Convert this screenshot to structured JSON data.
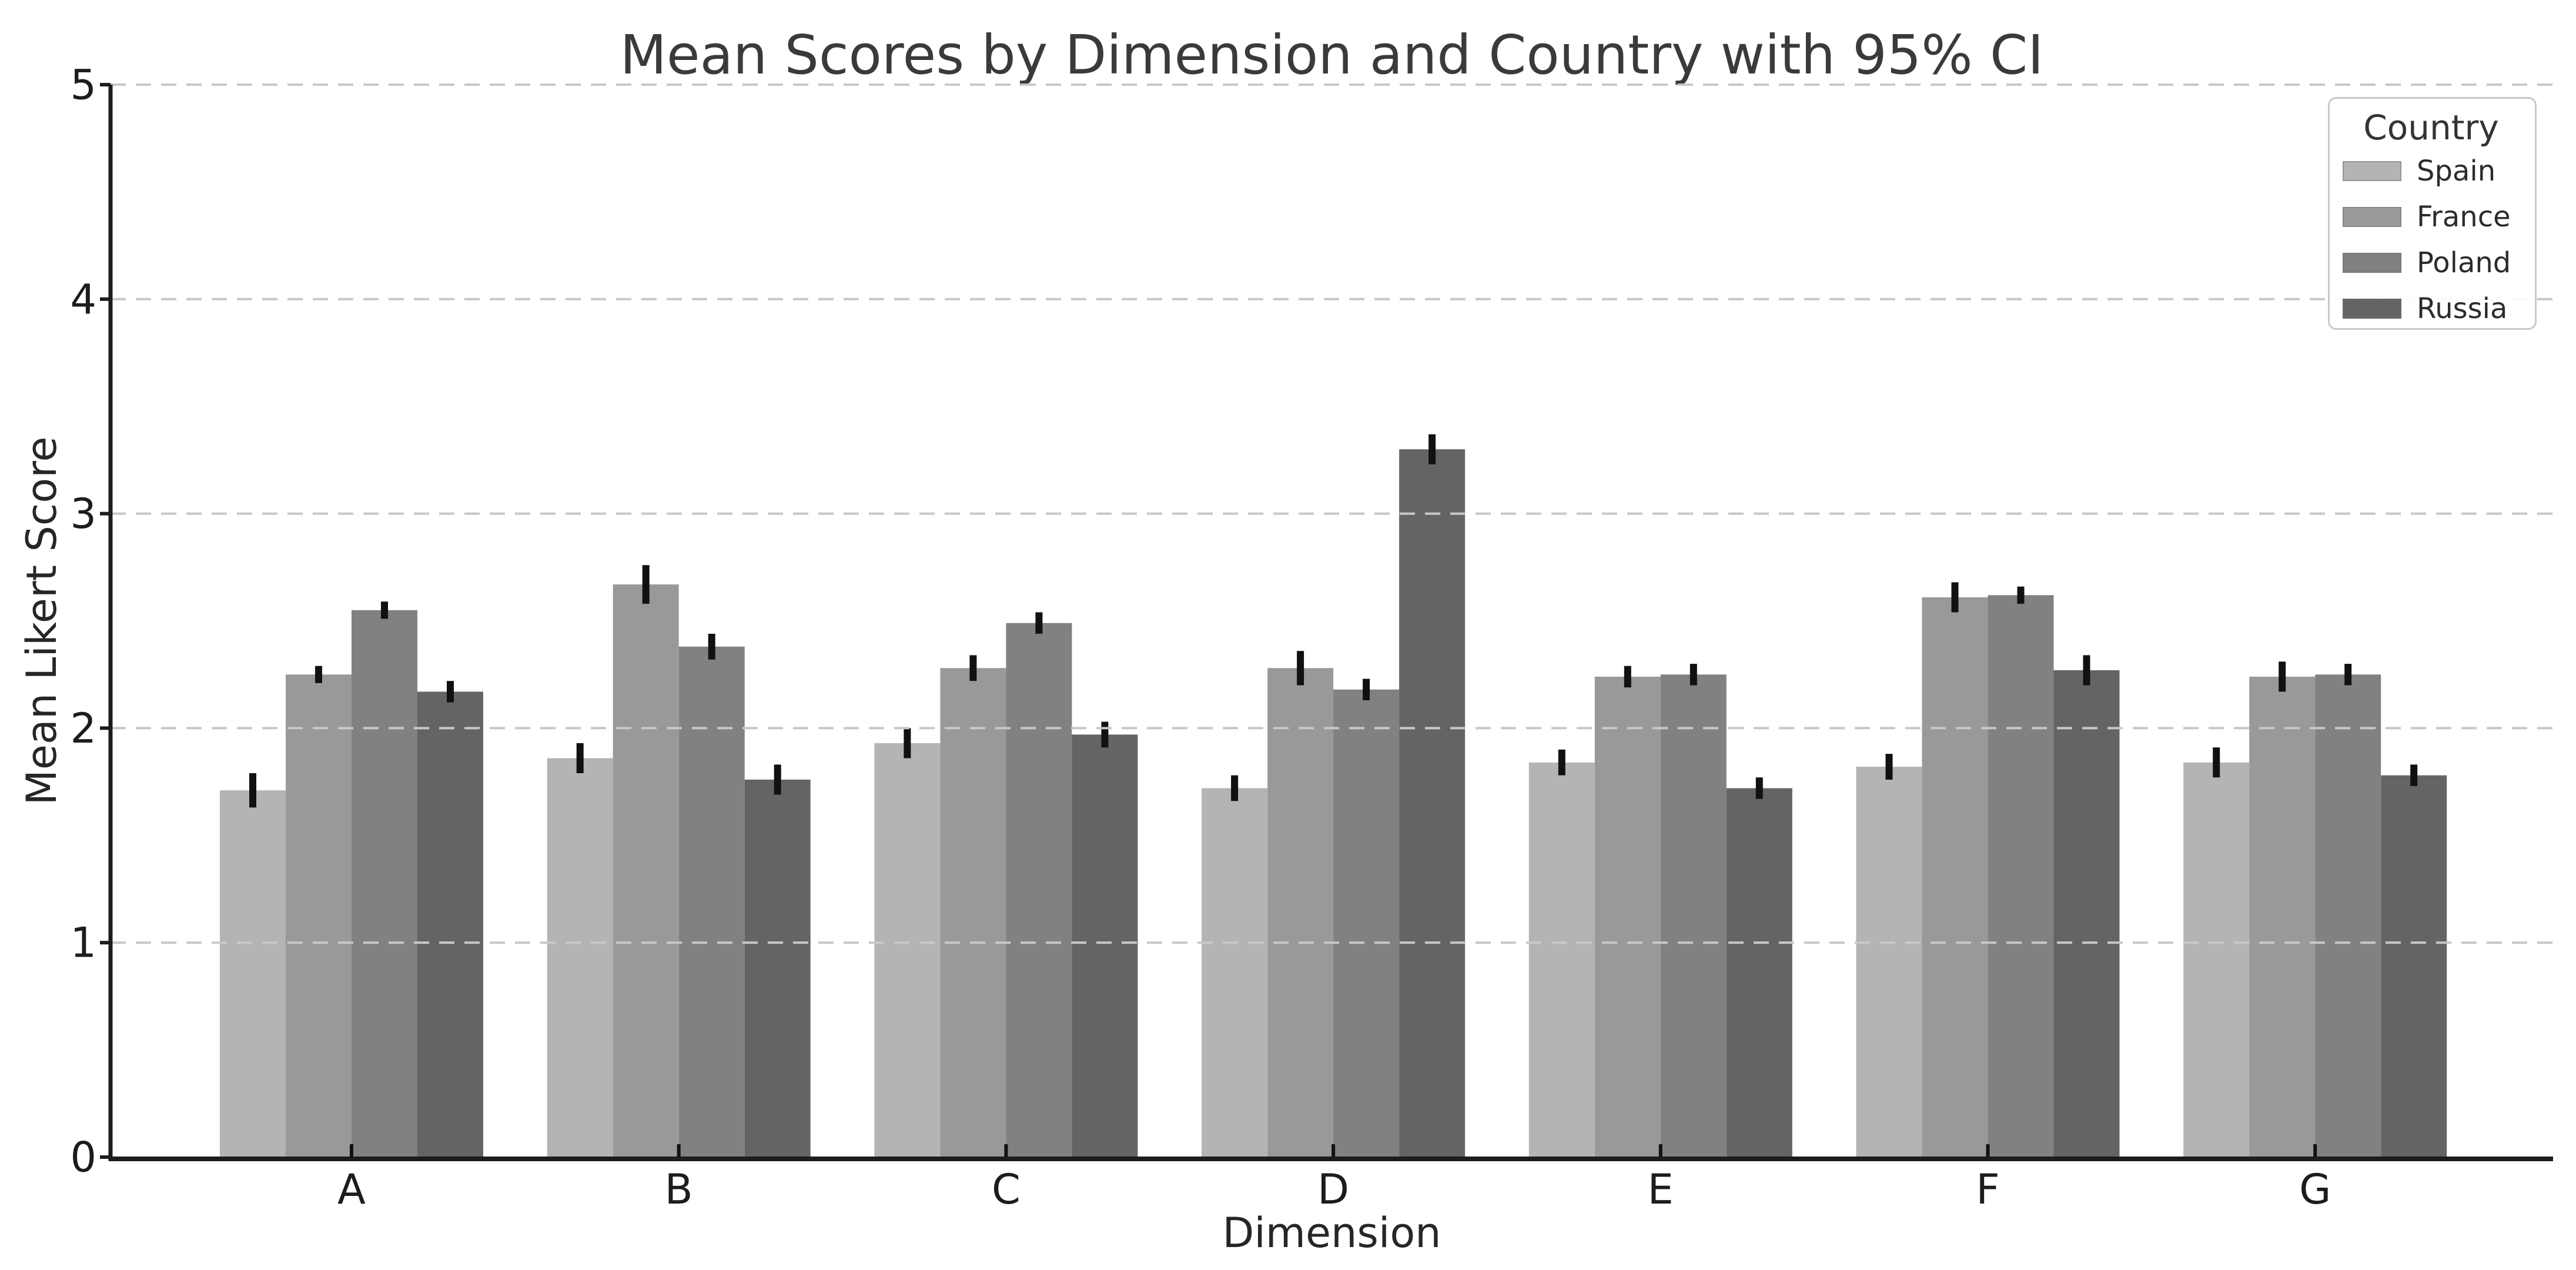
{
  "title": "Mean Scores by Dimension and Country with 95% CI",
  "xlabel": "Dimension",
  "ylabel": "Mean Likert Score",
  "legend": {
    "title": "Country"
  },
  "chart_data": {
    "type": "bar",
    "title": "Mean Scores by Dimension and Country with 95% CI",
    "xlabel": "Dimension",
    "ylabel": "Mean Likert Score",
    "categories": [
      "A",
      "B",
      "C",
      "D",
      "E",
      "F",
      "G"
    ],
    "series": [
      {
        "name": "Spain",
        "color": "#b4b4b4",
        "values": [
          1.71,
          1.86,
          1.93,
          1.72,
          1.84,
          1.82,
          1.84
        ],
        "ci": [
          0.08,
          0.07,
          0.07,
          0.06,
          0.06,
          0.06,
          0.07
        ]
      },
      {
        "name": "France",
        "color": "#999999",
        "values": [
          2.25,
          2.67,
          2.28,
          2.28,
          2.24,
          2.61,
          2.24
        ],
        "ci": [
          0.04,
          0.09,
          0.06,
          0.08,
          0.05,
          0.07,
          0.07
        ]
      },
      {
        "name": "Poland",
        "color": "#818181",
        "values": [
          2.55,
          2.38,
          2.49,
          2.18,
          2.25,
          2.62,
          2.25
        ],
        "ci": [
          0.04,
          0.06,
          0.05,
          0.05,
          0.05,
          0.04,
          0.05
        ]
      },
      {
        "name": "Russia",
        "color": "#646464",
        "values": [
          2.17,
          1.76,
          1.97,
          3.3,
          1.72,
          2.27,
          1.78
        ],
        "ci": [
          0.05,
          0.07,
          0.06,
          0.07,
          0.05,
          0.07,
          0.05
        ]
      }
    ],
    "ylim": [
      0,
      5
    ],
    "yticks": [
      "0",
      "1",
      "2",
      "3",
      "4",
      "5"
    ],
    "grid": "horizontal dashed, drawn above bars",
    "grid_color": "#c8c8c8",
    "errorbar_color": "#111111",
    "legend_position": "upper right",
    "legend_title": "Country"
  }
}
